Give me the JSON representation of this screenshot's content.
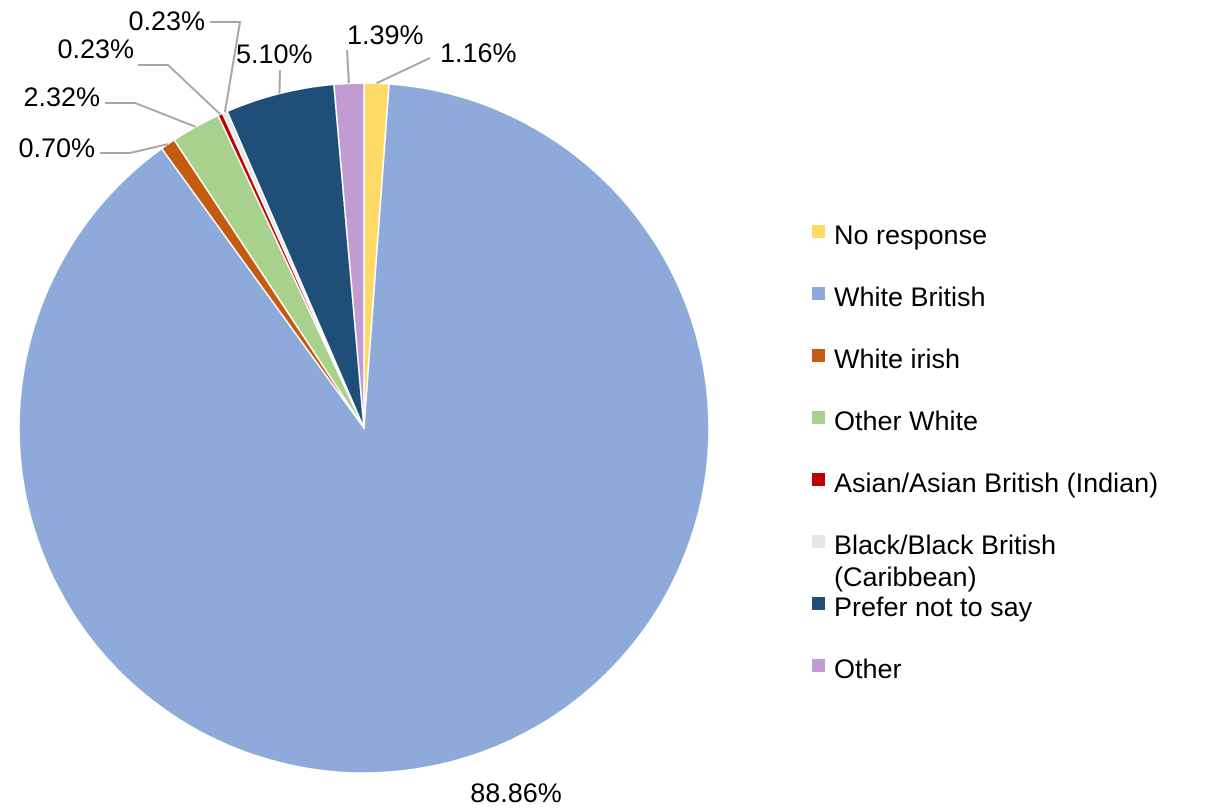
{
  "chart_data": {
    "type": "pie",
    "title": "",
    "legend_position": "right",
    "slices": [
      {
        "label": "No response",
        "value": 1.16,
        "value_label": "1.16%",
        "color": "#ffd966"
      },
      {
        "label": "White British",
        "value": 88.86,
        "value_label": "88.86%",
        "color": "#8eaadb"
      },
      {
        "label": "White irish",
        "value": 0.7,
        "value_label": "0.70%",
        "color": "#c55a11"
      },
      {
        "label": "Other White",
        "value": 2.32,
        "value_label": "2.32%",
        "color": "#a9d18e"
      },
      {
        "label": "Asian/Asian British (Indian)",
        "value": 0.23,
        "value_label": "0.23%",
        "color": "#c00000"
      },
      {
        "label": "Black/Black British (Caribbean)",
        "value": 0.23,
        "value_label": "0.23%",
        "color": "#e7e6e6"
      },
      {
        "label": "Prefer not to say",
        "value": 5.1,
        "value_label": "5.10%",
        "color": "#1f4e79"
      },
      {
        "label": "Other",
        "value": 1.39,
        "value_label": "1.39%",
        "color": "#c39bd3"
      }
    ]
  }
}
